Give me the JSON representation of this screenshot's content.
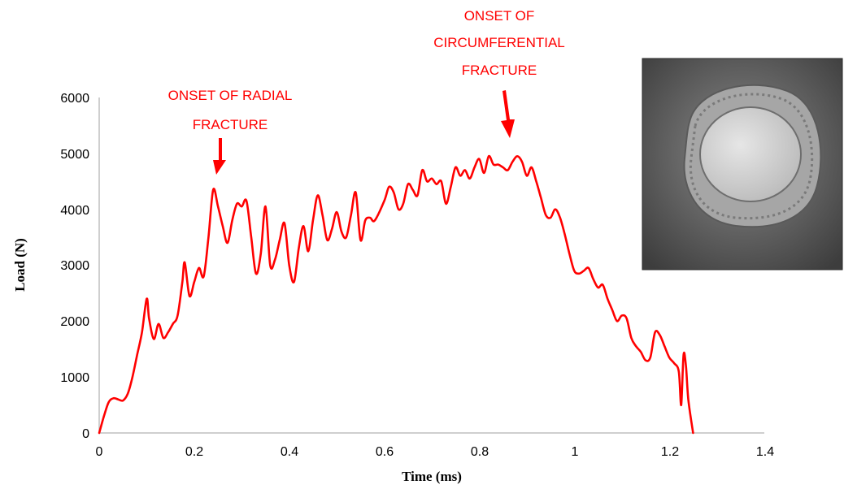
{
  "chart_data": {
    "type": "line",
    "title": "",
    "xlabel": "Time (ms)",
    "ylabel": "Load (N)",
    "xlim": [
      0,
      1.4
    ],
    "ylim": [
      0,
      6000
    ],
    "x_ticks": [
      "0",
      "0.2",
      "0.4",
      "0.6",
      "0.8",
      "1",
      "1.2",
      "1.4"
    ],
    "y_ticks": [
      "0",
      "1000",
      "2000",
      "3000",
      "4000",
      "5000",
      "6000"
    ],
    "grid": false,
    "legend": "none",
    "series_color": "#ff0000",
    "series": [
      {
        "x": [
          0,
          0.01,
          0.02,
          0.03,
          0.04,
          0.05,
          0.06,
          0.07,
          0.08,
          0.09,
          0.1,
          0.105,
          0.115,
          0.125,
          0.135,
          0.145,
          0.155,
          0.165,
          0.175,
          0.18,
          0.19,
          0.2,
          0.21,
          0.22,
          0.23,
          0.24,
          0.25,
          0.26,
          0.27,
          0.28,
          0.29,
          0.3,
          0.31,
          0.32,
          0.33,
          0.34,
          0.35,
          0.36,
          0.37,
          0.38,
          0.39,
          0.4,
          0.41,
          0.42,
          0.43,
          0.44,
          0.45,
          0.46,
          0.47,
          0.48,
          0.49,
          0.5,
          0.51,
          0.52,
          0.53,
          0.54,
          0.55,
          0.56,
          0.57,
          0.58,
          0.6,
          0.61,
          0.62,
          0.63,
          0.64,
          0.65,
          0.66,
          0.67,
          0.68,
          0.69,
          0.7,
          0.71,
          0.72,
          0.73,
          0.74,
          0.75,
          0.76,
          0.77,
          0.78,
          0.79,
          0.8,
          0.81,
          0.82,
          0.83,
          0.84,
          0.85,
          0.86,
          0.87,
          0.88,
          0.89,
          0.9,
          0.91,
          0.92,
          0.93,
          0.94,
          0.95,
          0.96,
          0.97,
          0.98,
          0.99,
          1.0,
          1.01,
          1.02,
          1.03,
          1.04,
          1.05,
          1.06,
          1.07,
          1.08,
          1.09,
          1.1,
          1.11,
          1.12,
          1.13,
          1.14,
          1.15,
          1.16,
          1.17,
          1.18,
          1.19,
          1.2,
          1.21,
          1.22,
          1.225,
          1.23,
          1.235,
          1.24,
          1.25
        ],
        "y": [
          0,
          300,
          550,
          620,
          600,
          580,
          700,
          1000,
          1400,
          1800,
          2400,
          2050,
          1680,
          1950,
          1700,
          1800,
          1950,
          2100,
          2700,
          3050,
          2450,
          2700,
          2950,
          2800,
          3500,
          4350,
          4050,
          3700,
          3400,
          3800,
          4100,
          4050,
          4150,
          3500,
          2850,
          3200,
          4050,
          3000,
          3100,
          3450,
          3750,
          3000,
          2700,
          3300,
          3700,
          3250,
          3800,
          4250,
          3900,
          3450,
          3650,
          3950,
          3600,
          3500,
          3900,
          4300,
          3450,
          3800,
          3850,
          3800,
          4150,
          4400,
          4300,
          4000,
          4100,
          4450,
          4350,
          4250,
          4700,
          4500,
          4550,
          4450,
          4500,
          4100,
          4400,
          4750,
          4600,
          4700,
          4550,
          4750,
          4900,
          4650,
          4950,
          4800,
          4800,
          4750,
          4700,
          4850,
          4950,
          4850,
          4600,
          4750,
          4500,
          4200,
          3900,
          3850,
          4000,
          3850,
          3550,
          3200,
          2900,
          2850,
          2900,
          2950,
          2750,
          2600,
          2650,
          2400,
          2200,
          2000,
          2100,
          2050,
          1700,
          1550,
          1450,
          1300,
          1350,
          1800,
          1750,
          1550,
          1350,
          1250,
          1100,
          500,
          1400,
          1200,
          600,
          0
        ]
      }
    ],
    "annotations": [
      {
        "lines": [
          "ONSET OF RADIAL",
          "FRACTURE"
        ],
        "x": 0.245,
        "y": 4350
      },
      {
        "lines": [
          "ONSET OF",
          "CIRCUMFERENTIAL",
          "FRACTURE"
        ],
        "x": 0.86,
        "y": 4950
      }
    ]
  }
}
